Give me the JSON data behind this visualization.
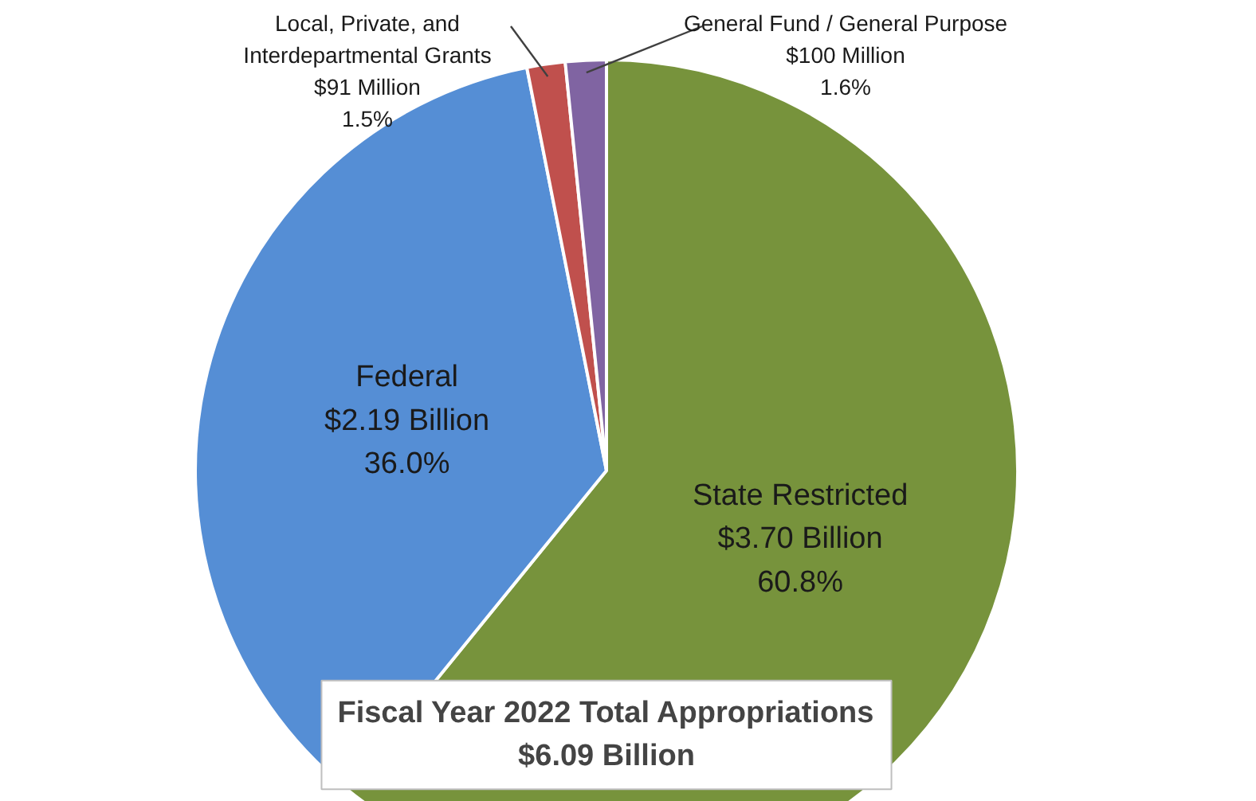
{
  "chart_data": {
    "type": "pie",
    "categories": [
      "State Restricted",
      "Federal",
      "Local, Private, and\nInterdepartmental Grants",
      "General Fund / General Purpose"
    ],
    "values": [
      60.8,
      36.0,
      1.5,
      1.6
    ],
    "value_labels": [
      "$3.70 Billion\n60.8%",
      "$2.19 Billion\n36.0%",
      "$91 Million\n1.5%",
      "$100 Million\n1.6%"
    ],
    "colors": [
      "#77933c",
      "#558ed5",
      "#c0504d",
      "#8064a2"
    ],
    "annotations": [
      "Fiscal Year 2022 Total Appropriations\n$6.09 Billion"
    ]
  }
}
